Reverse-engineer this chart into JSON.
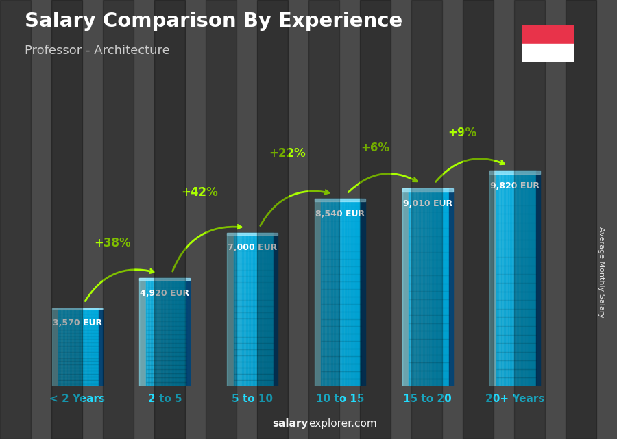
{
  "title": "Salary Comparison By Experience",
  "subtitle": "Professor - Architecture",
  "categories": [
    "< 2 Years",
    "2 to 5",
    "5 to 10",
    "10 to 15",
    "15 to 20",
    "20+ Years"
  ],
  "values": [
    3570,
    4920,
    7000,
    8540,
    9010,
    9820
  ],
  "pct_changes": [
    null,
    "+38%",
    "+42%",
    "+22%",
    "+6%",
    "+9%"
  ],
  "labels": [
    "3,570 EUR",
    "4,920 EUR",
    "7,000 EUR",
    "8,540 EUR",
    "9,010 EUR",
    "9,820 EUR"
  ],
  "bg_color": "#4a4a4a",
  "title_color": "#ffffff",
  "subtitle_color": "#cccccc",
  "label_color": "#ffffff",
  "pct_color": "#aaff00",
  "axis_label_color": "#22ddff",
  "watermark_bold": "salary",
  "watermark_rest": "explorer.com",
  "ylabel": "Average Monthly Salary",
  "flag_red": "#e8334a",
  "flag_white": "#ffffff",
  "ylim_max": 12000,
  "bar_width": 0.58,
  "bar_cyan_light": "#00d4ff",
  "bar_cyan_mid": "#00aadd",
  "bar_cyan_dark": "#0077bb",
  "bar_highlight": "#88eeff",
  "bar_shadow": "#004477"
}
